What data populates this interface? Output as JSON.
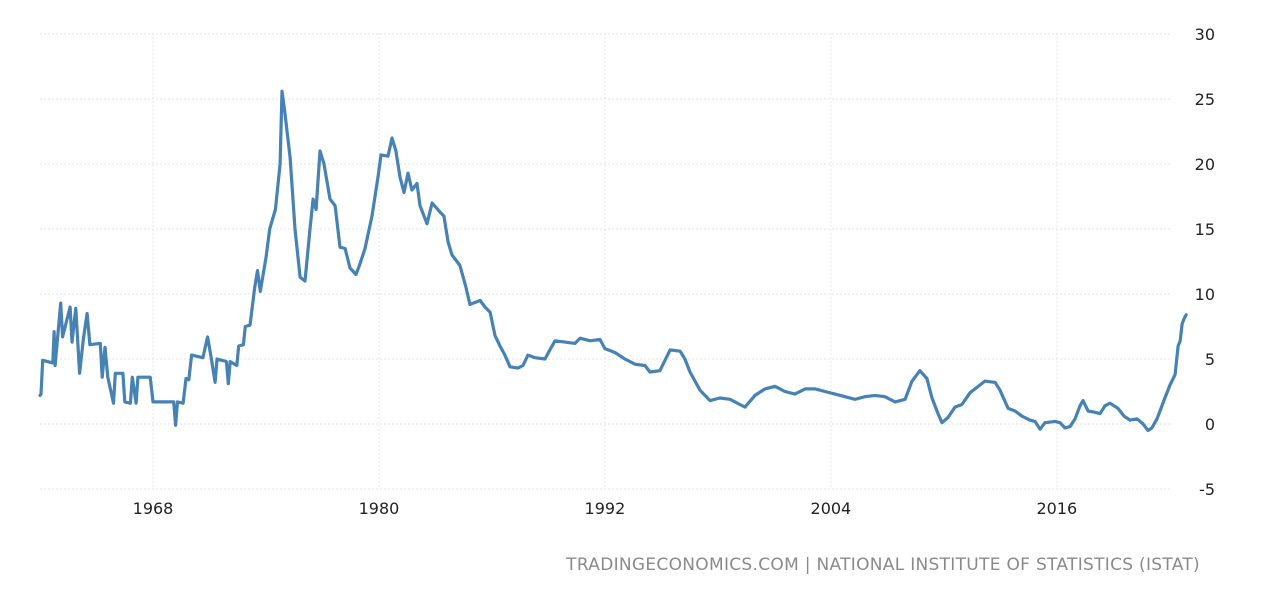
{
  "chart_data": {
    "type": "line",
    "title": "",
    "xlabel": "",
    "ylabel": "",
    "ylim": [
      -5,
      30
    ],
    "yticks": [
      "30",
      "25",
      "20",
      "15",
      "10",
      "5",
      "0",
      "-5"
    ],
    "ytick_values": [
      30,
      25,
      20,
      15,
      10,
      5,
      0,
      -5
    ],
    "xticks": [
      "1968",
      "1980",
      "1992",
      "2004",
      "2016"
    ],
    "xtick_values": [
      1968,
      1980,
      1992,
      2004,
      2016
    ],
    "grid": true,
    "y_axis_side": "right",
    "line_color": "#4682b4",
    "series": [
      {
        "x": [
          1962.0,
          1962.05,
          1962.14,
          1962.68,
          1962.75,
          1962.8,
          1963.1,
          1963.2,
          1963.6,
          1963.7,
          1963.9,
          1964.1,
          1964.3,
          1964.5,
          1964.65,
          1965.2,
          1965.3,
          1965.45,
          1965.6,
          1965.9,
          1966.0,
          1966.4,
          1966.5,
          1966.8,
          1966.9,
          1967.1,
          1967.2,
          1967.85,
          1968.0,
          1969.1,
          1969.2,
          1969.3,
          1969.6,
          1969.75,
          1969.9,
          1970.05,
          1970.65,
          1970.9,
          1971.1,
          1971.3,
          1971.4,
          1971.9,
          1972.0,
          1972.1,
          1972.45,
          1972.55,
          1972.8,
          1972.9,
          1973.15,
          1973.4,
          1973.55,
          1973.7,
          1974.0,
          1974.2,
          1974.5,
          1974.75,
          1974.85,
          1975.0,
          1975.28,
          1975.54,
          1975.81,
          1976.07,
          1976.34,
          1976.5,
          1976.66,
          1976.87,
          1977.08,
          1977.4,
          1977.67,
          1977.93,
          1978.2,
          1978.46,
          1978.78,
          1978.99,
          1979.26,
          1979.63,
          1979.95,
          1980.11,
          1980.48,
          1980.69,
          1980.9,
          1981.12,
          1981.33,
          1981.54,
          1981.75,
          1982.02,
          1982.18,
          1982.55,
          1982.82,
          1983.24,
          1983.45,
          1983.67,
          1983.88,
          1984.3,
          1984.62,
          1984.83,
          1985.37,
          1985.63,
          1985.9,
          1986.16,
          1986.43,
          1986.69,
          1986.96,
          1987.38,
          1987.65,
          1987.91,
          1988.29,
          1988.82,
          1989.08,
          1989.35,
          1989.88,
          1990.41,
          1990.68,
          1991.21,
          1991.74,
          1992.0,
          1992.53,
          1993.06,
          1993.6,
          1994.13,
          1994.39,
          1994.92,
          1995.46,
          1995.99,
          1996.25,
          1996.52,
          1997.05,
          1997.58,
          1998.11,
          1998.64,
          1999.17,
          1999.44,
          1999.97,
          2000.5,
          2001.03,
          2001.56,
          2002.09,
          2002.63,
          2003.16,
          2003.69,
          2004.22,
          2004.75,
          2005.28,
          2005.81,
          2006.34,
          2006.87,
          2007.41,
          2007.94,
          2008.31,
          2008.73,
          2009.1,
          2009.37,
          2009.69,
          2009.9,
          2010.22,
          2010.59,
          2010.96,
          2011.39,
          2011.92,
          2012.18,
          2012.72,
          2012.98,
          2013.41,
          2013.78,
          2014.15,
          2014.57,
          2014.84,
          2015.11,
          2015.37,
          2015.9,
          2016.17,
          2016.43,
          2016.7,
          2016.97,
          2017.23,
          2017.39,
          2017.66,
          2018.03,
          2018.29,
          2018.56,
          2018.82,
          2019.25,
          2019.57,
          2019.89,
          2020.26,
          2020.58,
          2020.84,
          2021.05,
          2021.32,
          2021.48,
          2021.74,
          2022.01,
          2022.28,
          2022.44,
          2022.55,
          2022.65,
          2022.76,
          2022.87
        ],
        "values": [
          2.2,
          2.3,
          4.9,
          4.7,
          7.1,
          4.5,
          9.3,
          6.7,
          9.0,
          6.3,
          8.9,
          3.9,
          6.5,
          8.5,
          6.1,
          6.2,
          3.6,
          5.9,
          3.6,
          1.6,
          3.9,
          3.9,
          1.7,
          1.6,
          3.6,
          1.6,
          3.6,
          3.6,
          1.7,
          1.7,
          -0.1,
          1.7,
          1.6,
          3.5,
          3.4,
          5.3,
          5.1,
          6.7,
          5.0,
          3.2,
          5.0,
          4.8,
          3.1,
          4.8,
          4.5,
          6.0,
          6.1,
          7.5,
          7.6,
          10.5,
          11.8,
          10.2,
          12.8,
          15.0,
          16.5,
          20.0,
          25.6,
          24.0,
          20.5,
          15.0,
          11.3,
          11.0,
          15.0,
          17.3,
          16.5,
          21.0,
          20.0,
          17.3,
          16.8,
          13.6,
          13.5,
          12.0,
          11.5,
          12.3,
          13.5,
          16.0,
          19.0,
          20.7,
          20.6,
          22.0,
          21.0,
          19.0,
          17.8,
          19.3,
          18.0,
          18.5,
          16.8,
          15.4,
          17.0,
          16.3,
          16.0,
          14.0,
          13.0,
          12.2,
          10.5,
          9.2,
          9.5,
          9.0,
          8.6,
          6.8,
          6.0,
          5.3,
          4.4,
          4.3,
          4.5,
          5.3,
          5.1,
          5.0,
          5.7,
          6.4,
          6.3,
          6.2,
          6.6,
          6.4,
          6.5,
          5.8,
          5.5,
          5.0,
          4.6,
          4.5,
          4.0,
          4.1,
          5.7,
          5.6,
          5.0,
          4.0,
          2.6,
          1.8,
          2.0,
          1.9,
          1.5,
          1.3,
          2.2,
          2.7,
          2.9,
          2.5,
          2.3,
          2.7,
          2.7,
          2.5,
          2.3,
          2.1,
          1.9,
          2.1,
          2.2,
          2.1,
          1.7,
          1.9,
          3.3,
          4.1,
          3.5,
          2.0,
          0.8,
          0.1,
          0.5,
          1.3,
          1.5,
          2.4,
          3.0,
          3.3,
          3.2,
          2.6,
          1.2,
          1.0,
          0.6,
          0.3,
          0.2,
          -0.4,
          0.1,
          0.2,
          0.1,
          -0.3,
          -0.2,
          0.4,
          1.4,
          1.8,
          1.0,
          0.9,
          0.8,
          1.4,
          1.6,
          1.2,
          0.6,
          0.3,
          0.4,
          0.0,
          -0.5,
          -0.3,
          0.4,
          1.0,
          2.0,
          3.0,
          3.8,
          6.0,
          6.4,
          7.7,
          8.1,
          8.4
        ]
      }
    ]
  },
  "source": "TRADINGECONOMICS.COM | NATIONAL INSTITUTE OF STATISTICS (ISTAT)"
}
